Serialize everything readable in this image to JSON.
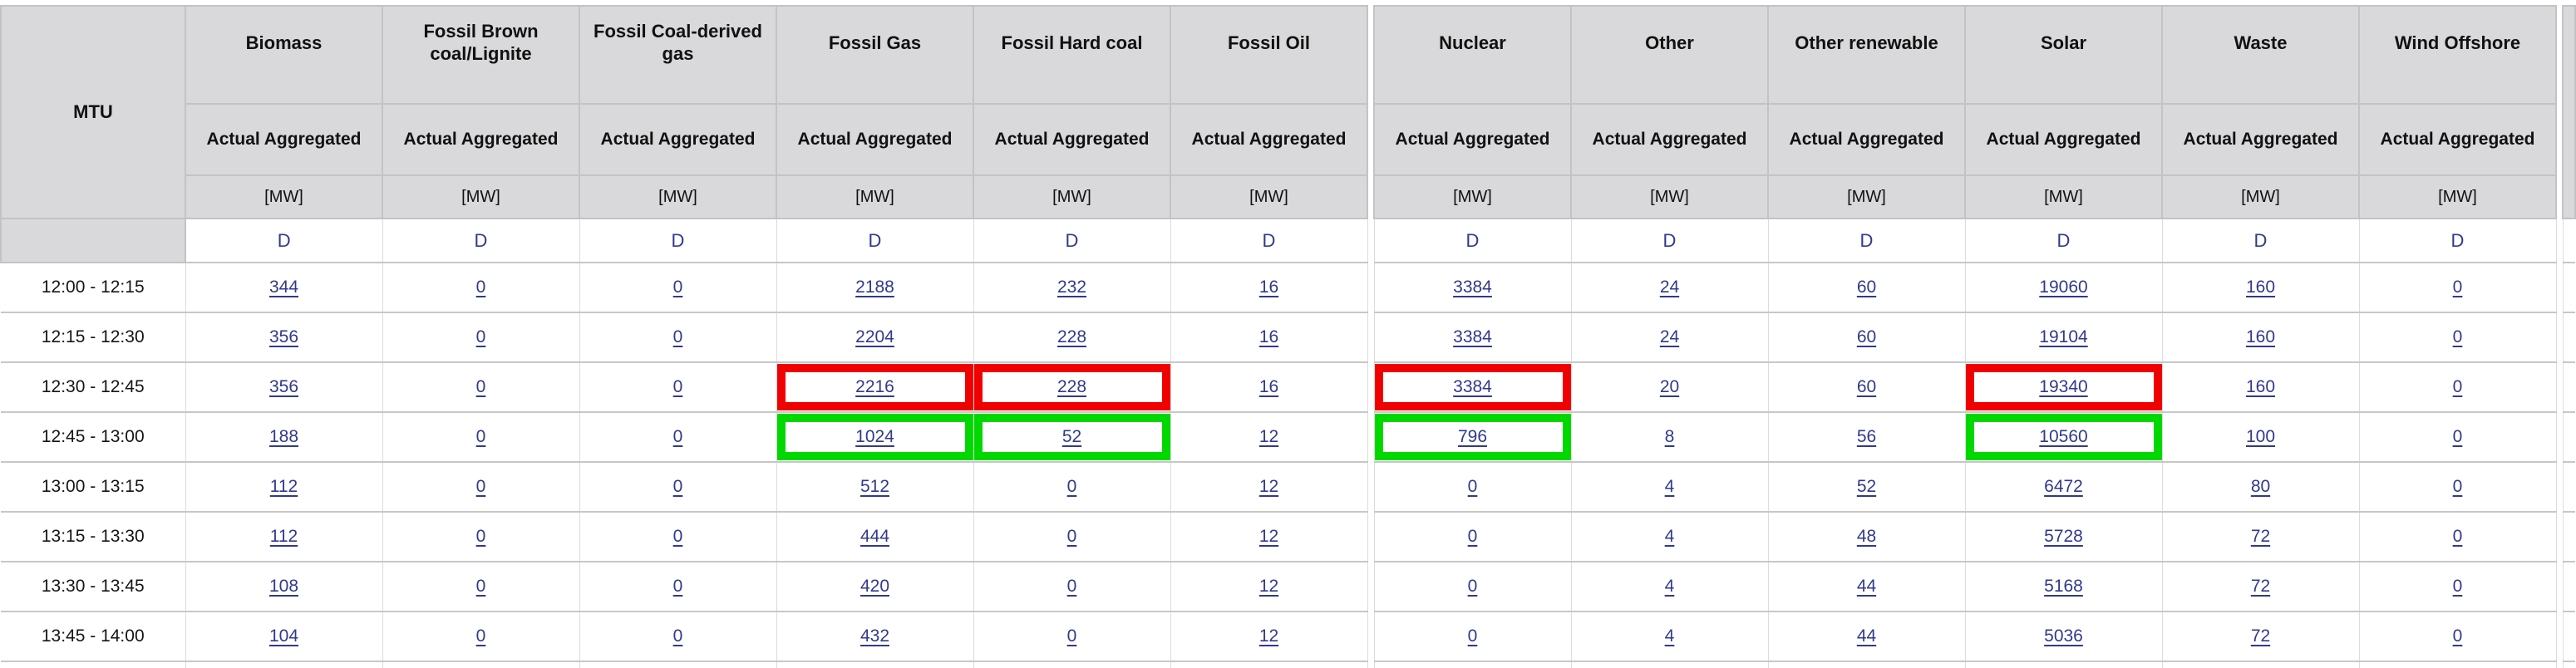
{
  "colors": {
    "header_bg": "#d9d9db",
    "link": "#31398d",
    "red_highlight": "#f10000",
    "green_highlight": "#00d800",
    "header_border": "#c3c3c5",
    "body_h_border": "#c7c7c7",
    "body_v_border": "#dcdcdc"
  },
  "table": {
    "corner_label": "MTU",
    "measure_label": "Actual Aggregated",
    "unit_label": "[MW]",
    "scope_label": "D",
    "column_groups": [
      [
        "Biomass",
        "Fossil Brown coal/Lignite",
        "Fossil Coal-derived gas",
        "Fossil Gas",
        "Fossil Hard coal",
        "Fossil Oil"
      ],
      [
        "Nuclear",
        "Other",
        "Other renewable",
        "Solar",
        "Waste",
        "Wind Offshore"
      ]
    ],
    "rows": [
      {
        "time": "12:00 - 12:15",
        "values": [
          344,
          0,
          0,
          2188,
          232,
          16,
          3384,
          24,
          60,
          19060,
          160,
          0
        ],
        "highlights": {}
      },
      {
        "time": "12:15 - 12:30",
        "values": [
          356,
          0,
          0,
          2204,
          228,
          16,
          3384,
          24,
          60,
          19104,
          160,
          0
        ],
        "highlights": {}
      },
      {
        "time": "12:30 - 12:45",
        "values": [
          356,
          0,
          0,
          2216,
          228,
          16,
          3384,
          20,
          60,
          19340,
          160,
          0
        ],
        "highlights": {
          "3": "red",
          "4": "red",
          "6": "red",
          "9": "red"
        }
      },
      {
        "time": "12:45 - 13:00",
        "values": [
          188,
          0,
          0,
          1024,
          52,
          12,
          796,
          8,
          56,
          10560,
          100,
          0
        ],
        "highlights": {
          "3": "green",
          "4": "green",
          "6": "green",
          "9": "green"
        }
      },
      {
        "time": "13:00 - 13:15",
        "values": [
          112,
          0,
          0,
          512,
          0,
          12,
          0,
          4,
          52,
          6472,
          80,
          0
        ],
        "highlights": {}
      },
      {
        "time": "13:15 - 13:30",
        "values": [
          112,
          0,
          0,
          444,
          0,
          12,
          0,
          4,
          48,
          5728,
          72,
          0
        ],
        "highlights": {}
      },
      {
        "time": "13:30 - 13:45",
        "values": [
          108,
          0,
          0,
          420,
          0,
          12,
          0,
          4,
          44,
          5168,
          72,
          0
        ],
        "highlights": {}
      },
      {
        "time": "13:45 - 14:00",
        "values": [
          104,
          0,
          0,
          432,
          0,
          12,
          0,
          4,
          44,
          5036,
          72,
          0
        ],
        "highlights": {}
      }
    ],
    "partial_row_visible": true
  }
}
